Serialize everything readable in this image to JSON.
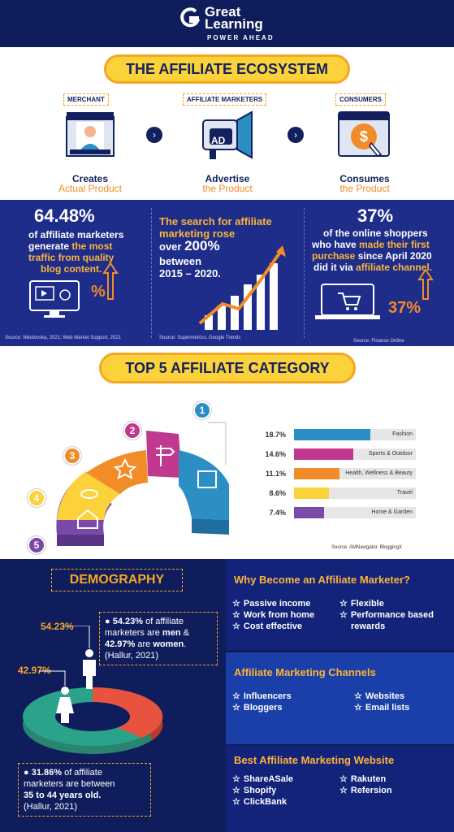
{
  "brand": {
    "line1": "Great",
    "line2": "Learning",
    "tagline": "POWER AHEAD"
  },
  "ecosystem": {
    "title": "THE AFFILIATE ECOSYSTEM",
    "roles": [
      {
        "tag": "MERCHANT",
        "main": "Creates",
        "sub": "Actual Product"
      },
      {
        "tag": "AFFILIATE MARKETERS",
        "main": "Advertise",
        "sub": "the Product"
      },
      {
        "tag": "CONSUMERS",
        "main": "Consumes",
        "sub": "the Product"
      }
    ],
    "ad_text": "AD"
  },
  "stats": {
    "s1": {
      "big": "64.48%",
      "l1": "of affiliate marketers",
      "l2a": "generate ",
      "l2b": "the most",
      "l3": "traffic from quality",
      "l4": "blog content.",
      "icon_text": "%",
      "source": "Source: Nikolovska, 2021; Web Market Support, 2021"
    },
    "s2": {
      "l1": "The search for affiliate",
      "l2": "marketing rose",
      "l3a": "over ",
      "l3b": "200%",
      "l4": "between",
      "l5": "2015 – 2020.",
      "source": "Source: Supermetrics, Google Trends"
    },
    "s3": {
      "big": "37%",
      "l1": "of the online shoppers",
      "l2a": "who have ",
      "l2b": "made their first",
      "l3a": "purchase",
      "l3b": " since April 2020",
      "l4a": "did it via ",
      "l4b": "affiliate channel.",
      "icon_text": "37%",
      "source": "Source: Finance Online"
    }
  },
  "top5": {
    "title": "TOP 5 AFFILIATE CATEGORY",
    "numbers": [
      "1",
      "2",
      "3",
      "4",
      "5"
    ],
    "source": "Source: AMNavigator, BloggingX"
  },
  "chart_data": {
    "type": "bar",
    "categories": [
      "Fashion",
      "Sports & Outdoor",
      "Health, Wellness & Beauty",
      "Travel",
      "Home & Garden"
    ],
    "values": [
      18.7,
      14.6,
      11.1,
      8.6,
      7.4
    ],
    "value_labels": [
      "18.7%",
      "14.6%",
      "11.1%",
      "8.6%",
      "7.4%"
    ],
    "colors": [
      "#2b8fc4",
      "#c0398f",
      "#f28c28",
      "#fcd23a",
      "#7a4aa8"
    ],
    "title": "",
    "xlabel": "",
    "ylabel": "",
    "xlim": [
      0,
      30
    ]
  },
  "demography": {
    "title": "DEMOGRAPHY",
    "pct_men": "54.23%",
    "pct_women": "42.97%",
    "note1": {
      "a": "54.23%",
      "b": " of affiliate",
      "c": "marketers are ",
      "d": "men",
      "e": " &",
      "f": "42.97%",
      "g": " are ",
      "h": "women",
      "i": ".",
      "j": "(Hallur, 2021)"
    },
    "note2": {
      "a": "31.86%",
      "b": " of affiliate",
      "c": "marketers are between",
      "d": "35 to 44 years old.",
      "e": "(Hallur, 2021)"
    },
    "colors": {
      "men": "#e8533f",
      "women": "#2aa38a"
    }
  },
  "why": {
    "title": "Why Become an Affiliate Marketer?",
    "left": [
      "Passive income",
      "Work from home",
      "Cost effective"
    ],
    "right": [
      "Flexible",
      "Performance based",
      "rewards"
    ]
  },
  "channels": {
    "title": "Affiliate Marketing Channels",
    "left": [
      "Influencers",
      "Bloggers"
    ],
    "right": [
      "Websites",
      "Email lists"
    ]
  },
  "best": {
    "title": "Best Affiliate Marketing Website",
    "left": [
      "ShareASale",
      "Shopify",
      "ClickBank"
    ],
    "right": [
      "Rakuten",
      "Refersion"
    ]
  }
}
